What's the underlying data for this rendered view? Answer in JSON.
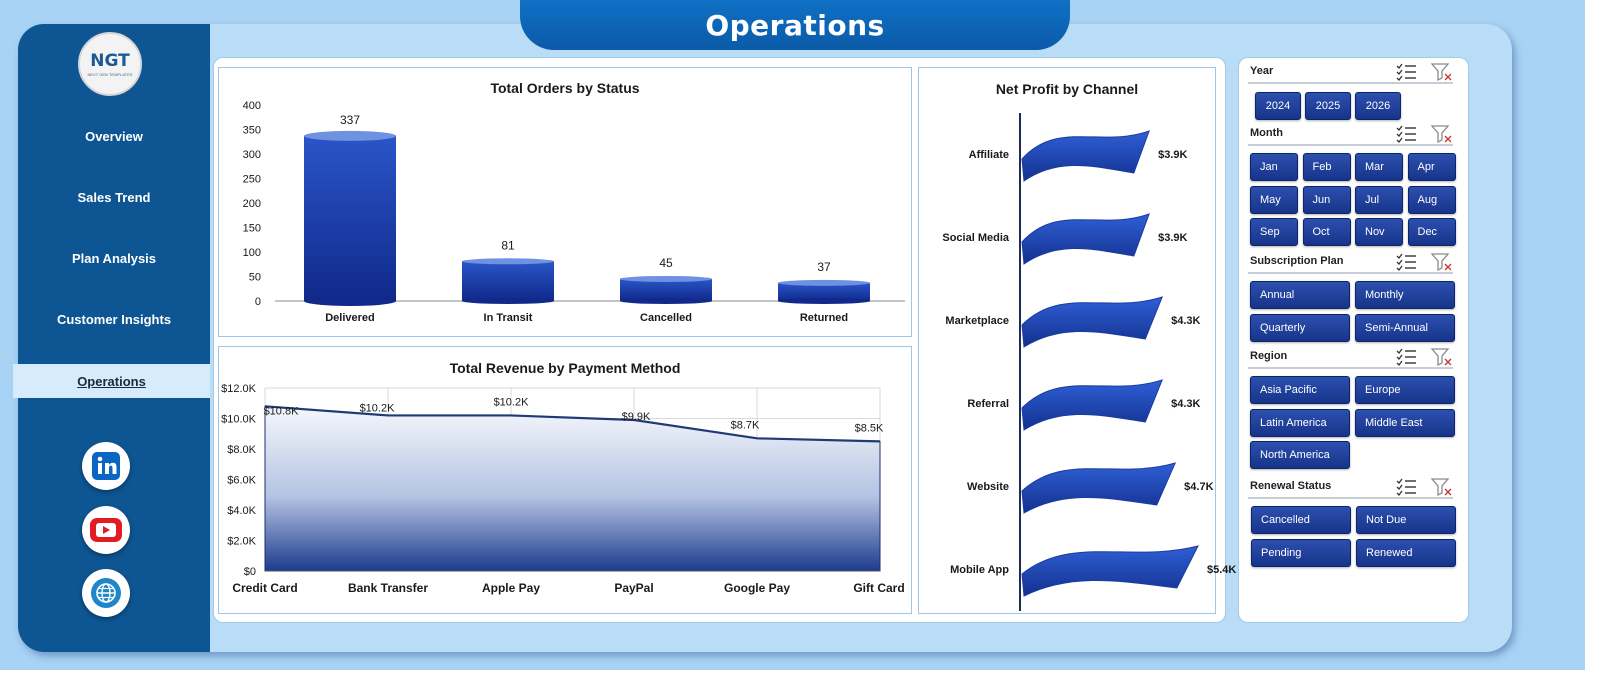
{
  "page": {
    "title": "Operations"
  },
  "logo": {
    "text": "NGT",
    "subtext": "NEXT GEN TEMPLATES"
  },
  "sidebar": {
    "items": [
      {
        "label": "Overview",
        "active": false
      },
      {
        "label": "Sales Trend",
        "active": false
      },
      {
        "label": "Plan Analysis",
        "active": false
      },
      {
        "label": "Customer Insights",
        "active": false
      },
      {
        "label": "Operations",
        "active": true
      }
    ],
    "social": [
      {
        "icon": "linkedin-icon",
        "color": "#0a66c2"
      },
      {
        "icon": "youtube-icon",
        "color": "#e31b23"
      },
      {
        "icon": "globe-icon",
        "color": "#1f86c9"
      }
    ]
  },
  "colors": {
    "accent": "#0d5593",
    "bar": "#1a3ea8",
    "line": "#1f3a74",
    "chip": "#1f3f9e"
  },
  "slicers": [
    {
      "title": "Year",
      "items": [
        "2024",
        "2025",
        "2026"
      ]
    },
    {
      "title": "Month",
      "items": [
        "Jan",
        "Feb",
        "Mar",
        "Apr",
        "May",
        "Jun",
        "Jul",
        "Aug",
        "Sep",
        "Oct",
        "Nov",
        "Dec"
      ]
    },
    {
      "title": "Subscription Plan",
      "items": [
        "Annual",
        "Monthly",
        "Quarterly",
        "Semi-Annual"
      ]
    },
    {
      "title": "Region",
      "items": [
        "Asia Pacific",
        "Europe",
        "Latin America",
        "Middle East",
        "North America"
      ]
    },
    {
      "title": "Renewal Status",
      "items": [
        "Cancelled",
        "Not Due",
        "Pending",
        "Renewed"
      ]
    }
  ],
  "chart_data": [
    {
      "type": "bar",
      "title": "Total Orders by Status",
      "categories": [
        "Delivered",
        "In Transit",
        "Cancelled",
        "Returned"
      ],
      "values": [
        337,
        81,
        45,
        37
      ],
      "data_labels": [
        "337",
        "81",
        "45",
        "37"
      ],
      "yticks": [
        "0",
        "50",
        "100",
        "150",
        "200",
        "250",
        "300",
        "350",
        "400"
      ],
      "ylim": [
        0,
        400
      ],
      "grid": false
    },
    {
      "type": "area",
      "title": "Total Revenue  by Payment Method",
      "categories": [
        "Credit Card",
        "Bank Transfer",
        "Apple Pay",
        "PayPal",
        "Google Pay",
        "Gift Card"
      ],
      "values": [
        10800,
        10200,
        10200,
        9900,
        8700,
        8500
      ],
      "data_labels": [
        "$10.8K",
        "$10.2K",
        "$10.2K",
        "$9.9K",
        "$8.7K",
        "$8.5K"
      ],
      "yticks": [
        "$0",
        "$2.0K",
        "$4.0K",
        "$6.0K",
        "$8.0K",
        "$10.0K",
        "$12.0K"
      ],
      "ylim": [
        0,
        12000
      ],
      "grid": true
    },
    {
      "type": "bar",
      "orientation": "horizontal",
      "title": "Net Profit by Channel",
      "categories": [
        "Affiliate",
        "Social Media",
        "Marketplace",
        "Referral",
        "Website",
        "Mobile App"
      ],
      "values": [
        3900,
        3900,
        4300,
        4300,
        4700,
        5400
      ],
      "data_labels": [
        "$3.9K",
        "$3.9K",
        "$4.3K",
        "$4.3K",
        "$4.7K",
        "$5.4K"
      ],
      "xlim": [
        0,
        5400
      ]
    }
  ]
}
